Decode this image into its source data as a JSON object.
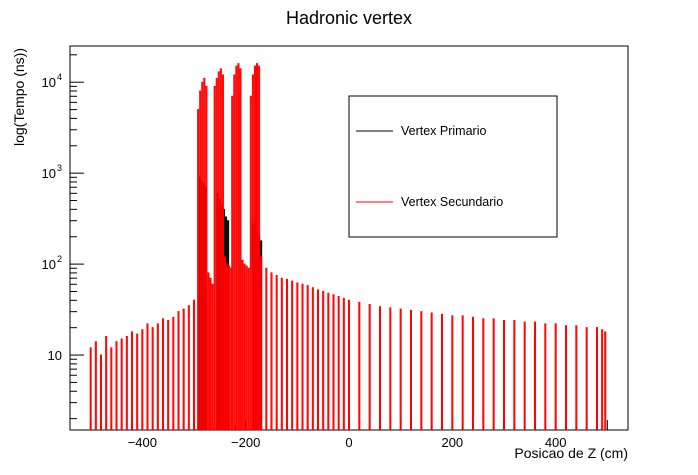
{
  "chart_data": {
    "type": "line",
    "title": "Hadronic vertex",
    "xlabel": "Posicao de Z (cm)",
    "ylabel": "log(Tempo (ns))",
    "xlim": [
      -540,
      540
    ],
    "ylim": [
      1.5,
      25000
    ],
    "yscale": "log",
    "grid": false,
    "legend_position": "top-right",
    "x_ticks": [
      {
        "value": -400,
        "label": "−400"
      },
      {
        "value": -200,
        "label": "−200"
      },
      {
        "value": 0,
        "label": "0"
      },
      {
        "value": 200,
        "label": "200"
      },
      {
        "value": 400,
        "label": "400"
      }
    ],
    "y_ticks": [
      {
        "value": 10,
        "label": "10",
        "sup": ""
      },
      {
        "value": 100,
        "label": "10",
        "sup": "2"
      },
      {
        "value": 1000,
        "label": "10",
        "sup": "3"
      },
      {
        "value": 10000,
        "label": "10",
        "sup": "4"
      }
    ],
    "series": [
      {
        "name": "Vertex Primario",
        "color": "#000000",
        "bin_width": 2,
        "points": [
          [
            -350,
            0
          ],
          [
            -342,
            0
          ],
          [
            -335,
            0
          ],
          [
            -330,
            0
          ],
          [
            -325,
            0
          ],
          [
            -318,
            0
          ],
          [
            -312,
            0
          ],
          [
            -305,
            0
          ],
          [
            -298,
            0
          ],
          [
            -294,
            0
          ],
          [
            -290,
            900
          ],
          [
            -286,
            820
          ],
          [
            -282,
            780
          ],
          [
            -278,
            700
          ],
          [
            -274,
            0
          ],
          [
            -270,
            0
          ],
          [
            -266,
            0
          ],
          [
            -262,
            0
          ],
          [
            -258,
            0
          ],
          [
            -254,
            600
          ],
          [
            -250,
            520
          ],
          [
            -246,
            460
          ],
          [
            -242,
            400
          ],
          [
            -238,
            330
          ],
          [
            -234,
            300
          ],
          [
            -230,
            0
          ],
          [
            -226,
            0
          ],
          [
            -222,
            0
          ],
          [
            -218,
            0
          ],
          [
            -214,
            0
          ],
          [
            -210,
            0
          ],
          [
            -206,
            0
          ],
          [
            -198,
            0
          ],
          [
            -194,
            0
          ],
          [
            -190,
            0
          ],
          [
            -186,
            280
          ],
          [
            -182,
            260
          ],
          [
            -178,
            230
          ],
          [
            -174,
            200
          ],
          [
            -170,
            180
          ],
          [
            -160,
            0
          ],
          [
            -150,
            0
          ],
          [
            -140,
            0
          ],
          [
            -130,
            0
          ],
          [
            -110,
            0
          ],
          [
            -90,
            0
          ],
          [
            -70,
            0
          ],
          [
            -10,
            0
          ],
          [
            20,
            0
          ],
          [
            45,
            0
          ],
          [
            60,
            0
          ],
          [
            90,
            0
          ],
          [
            110,
            0
          ],
          [
            130,
            0
          ],
          [
            150,
            0
          ],
          [
            200,
            0
          ],
          [
            230,
            0
          ],
          [
            260,
            0
          ],
          [
            290,
            0
          ],
          [
            300,
            0
          ],
          [
            320,
            0
          ],
          [
            340,
            0
          ],
          [
            360,
            0
          ],
          [
            380,
            0
          ],
          [
            400,
            0
          ],
          [
            420,
            0
          ],
          [
            440,
            0
          ],
          [
            460,
            0
          ],
          [
            470,
            0
          ],
          [
            480,
            0
          ]
        ]
      },
      {
        "name": "Vertex Secundario",
        "color": "#ff0000",
        "bin_width": 2,
        "points": [
          [
            -500,
            12
          ],
          [
            -490,
            14
          ],
          [
            -480,
            10
          ],
          [
            -470,
            16
          ],
          [
            -460,
            12
          ],
          [
            -450,
            14
          ],
          [
            -440,
            15
          ],
          [
            -430,
            16
          ],
          [
            -420,
            18
          ],
          [
            -410,
            17
          ],
          [
            -400,
            19
          ],
          [
            -390,
            22
          ],
          [
            -380,
            20
          ],
          [
            -370,
            22
          ],
          [
            -360,
            25
          ],
          [
            -350,
            24
          ],
          [
            -340,
            26
          ],
          [
            -330,
            30
          ],
          [
            -320,
            32
          ],
          [
            -310,
            35
          ],
          [
            -300,
            40
          ],
          [
            -292,
            5000
          ],
          [
            -288,
            8000
          ],
          [
            -284,
            10000
          ],
          [
            -280,
            11000
          ],
          [
            -276,
            9000
          ],
          [
            -272,
            80
          ],
          [
            -268,
            70
          ],
          [
            -264,
            60
          ],
          [
            -260,
            9000
          ],
          [
            -256,
            11000
          ],
          [
            -252,
            13000
          ],
          [
            -248,
            14000
          ],
          [
            -244,
            12000
          ],
          [
            -240,
            120
          ],
          [
            -236,
            100
          ],
          [
            -232,
            95
          ],
          [
            -228,
            90
          ],
          [
            -226,
            7000
          ],
          [
            -222,
            12000
          ],
          [
            -218,
            15000
          ],
          [
            -214,
            16000
          ],
          [
            -210,
            14000
          ],
          [
            -206,
            110
          ],
          [
            -202,
            100
          ],
          [
            -198,
            95
          ],
          [
            -194,
            90
          ],
          [
            -190,
            7000
          ],
          [
            -186,
            12000
          ],
          [
            -182,
            15000
          ],
          [
            -178,
            16000
          ],
          [
            -174,
            15000
          ],
          [
            -170,
            120
          ],
          [
            -160,
            90
          ],
          [
            -150,
            80
          ],
          [
            -140,
            75
          ],
          [
            -130,
            70
          ],
          [
            -120,
            68
          ],
          [
            -110,
            65
          ],
          [
            -100,
            62
          ],
          [
            -90,
            60
          ],
          [
            -80,
            58
          ],
          [
            -70,
            55
          ],
          [
            -60,
            52
          ],
          [
            -50,
            50
          ],
          [
            -40,
            48
          ],
          [
            -30,
            46
          ],
          [
            -20,
            44
          ],
          [
            -10,
            42
          ],
          [
            0,
            40
          ],
          [
            20,
            38
          ],
          [
            40,
            36
          ],
          [
            60,
            34
          ],
          [
            80,
            33
          ],
          [
            100,
            32
          ],
          [
            120,
            31
          ],
          [
            140,
            30
          ],
          [
            160,
            29
          ],
          [
            180,
            28
          ],
          [
            200,
            27
          ],
          [
            220,
            27
          ],
          [
            240,
            26
          ],
          [
            260,
            25
          ],
          [
            280,
            25
          ],
          [
            300,
            24
          ],
          [
            320,
            24
          ],
          [
            340,
            23
          ],
          [
            360,
            23
          ],
          [
            380,
            22
          ],
          [
            400,
            22
          ],
          [
            420,
            21
          ],
          [
            440,
            21
          ],
          [
            460,
            20
          ],
          [
            480,
            20
          ],
          [
            490,
            19
          ],
          [
            496,
            18
          ]
        ]
      }
    ]
  }
}
